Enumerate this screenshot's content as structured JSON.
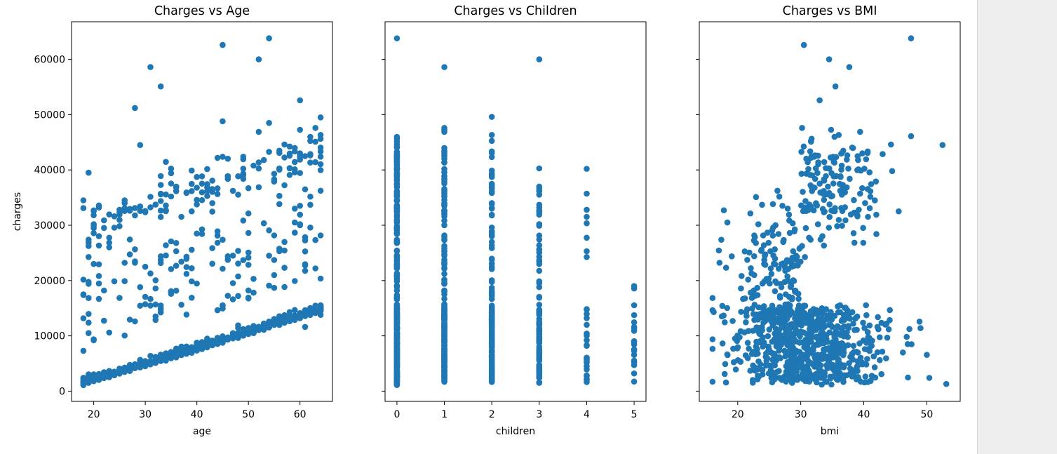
{
  "chart_data": [
    {
      "type": "scatter",
      "title": "Charges vs Age",
      "xlabel": "age",
      "ylabel": "charges",
      "xlim": [
        15.7,
        66.3
      ],
      "ylim": [
        -1850,
        66800
      ],
      "xticks": [
        20,
        30,
        40,
        50,
        60
      ],
      "yticks": [
        0,
        10000,
        20000,
        30000,
        40000,
        50000,
        60000
      ],
      "show_yticklabels": true,
      "color": "#1f77b4",
      "notable_points": [
        {
          "x": 18,
          "y": 1100
        },
        {
          "x": 18,
          "y": 7300
        },
        {
          "x": 18,
          "y": 34500
        },
        {
          "x": 19,
          "y": 39500
        },
        {
          "x": 23,
          "y": 26000
        },
        {
          "x": 23,
          "y": 10600
        },
        {
          "x": 28,
          "y": 51200
        },
        {
          "x": 29,
          "y": 44500
        },
        {
          "x": 31,
          "y": 58600
        },
        {
          "x": 33,
          "y": 55100
        },
        {
          "x": 40,
          "y": 28500
        },
        {
          "x": 45,
          "y": 62600
        },
        {
          "x": 45,
          "y": 48800
        },
        {
          "x": 52,
          "y": 60000
        },
        {
          "x": 54,
          "y": 63800
        },
        {
          "x": 54,
          "y": 48500
        },
        {
          "x": 60,
          "y": 52600
        },
        {
          "x": 61,
          "y": 36500
        },
        {
          "x": 64,
          "y": 49500
        },
        {
          "x": 64,
          "y": 13800
        }
      ]
    },
    {
      "type": "scatter",
      "title": "Charges vs Children",
      "xlabel": "children",
      "ylabel": "",
      "xlim": [
        -0.25,
        5.25
      ],
      "ylim": [
        -1850,
        66800
      ],
      "xticks": [
        0,
        1,
        2,
        3,
        4,
        5
      ],
      "yticks": [
        0,
        10000,
        20000,
        30000,
        40000,
        50000,
        60000
      ],
      "show_yticklabels": false,
      "color": "#1f77b4",
      "columns": [
        {
          "x": 0,
          "min": 1100,
          "max": 63800
        },
        {
          "x": 1,
          "min": 1700,
          "max": 58600
        },
        {
          "x": 2,
          "min": 2300,
          "max": 49600
        },
        {
          "x": 3,
          "min": 3400,
          "max": 60000
        },
        {
          "x": 4,
          "min": 4500,
          "max": 40200
        },
        {
          "x": 5,
          "min": 4700,
          "max": 19000
        }
      ]
    },
    {
      "type": "scatter",
      "title": "Charges vs BMI",
      "xlabel": "bmi",
      "ylabel": "",
      "xlim": [
        13.9,
        55.3
      ],
      "ylim": [
        -1850,
        66800
      ],
      "xticks": [
        20,
        30,
        40,
        50
      ],
      "yticks": [
        0,
        10000,
        20000,
        30000,
        40000,
        50000,
        60000
      ],
      "show_yticklabels": false,
      "color": "#1f77b4",
      "notable_points": [
        {
          "x": 16,
          "y": 1700
        },
        {
          "x": 17.8,
          "y": 32700
        },
        {
          "x": 30.5,
          "y": 62600
        },
        {
          "x": 33,
          "y": 52600
        },
        {
          "x": 34.5,
          "y": 60000
        },
        {
          "x": 35.5,
          "y": 55100
        },
        {
          "x": 37.7,
          "y": 58600
        },
        {
          "x": 47.5,
          "y": 63800
        },
        {
          "x": 47.5,
          "y": 46100
        },
        {
          "x": 52.5,
          "y": 44500
        },
        {
          "x": 53.1,
          "y": 1300
        },
        {
          "x": 50.4,
          "y": 2400
        },
        {
          "x": 49,
          "y": 11400
        },
        {
          "x": 44.5,
          "y": 39800
        },
        {
          "x": 42,
          "y": 28400
        },
        {
          "x": 22.9,
          "y": 35100
        }
      ]
    }
  ]
}
